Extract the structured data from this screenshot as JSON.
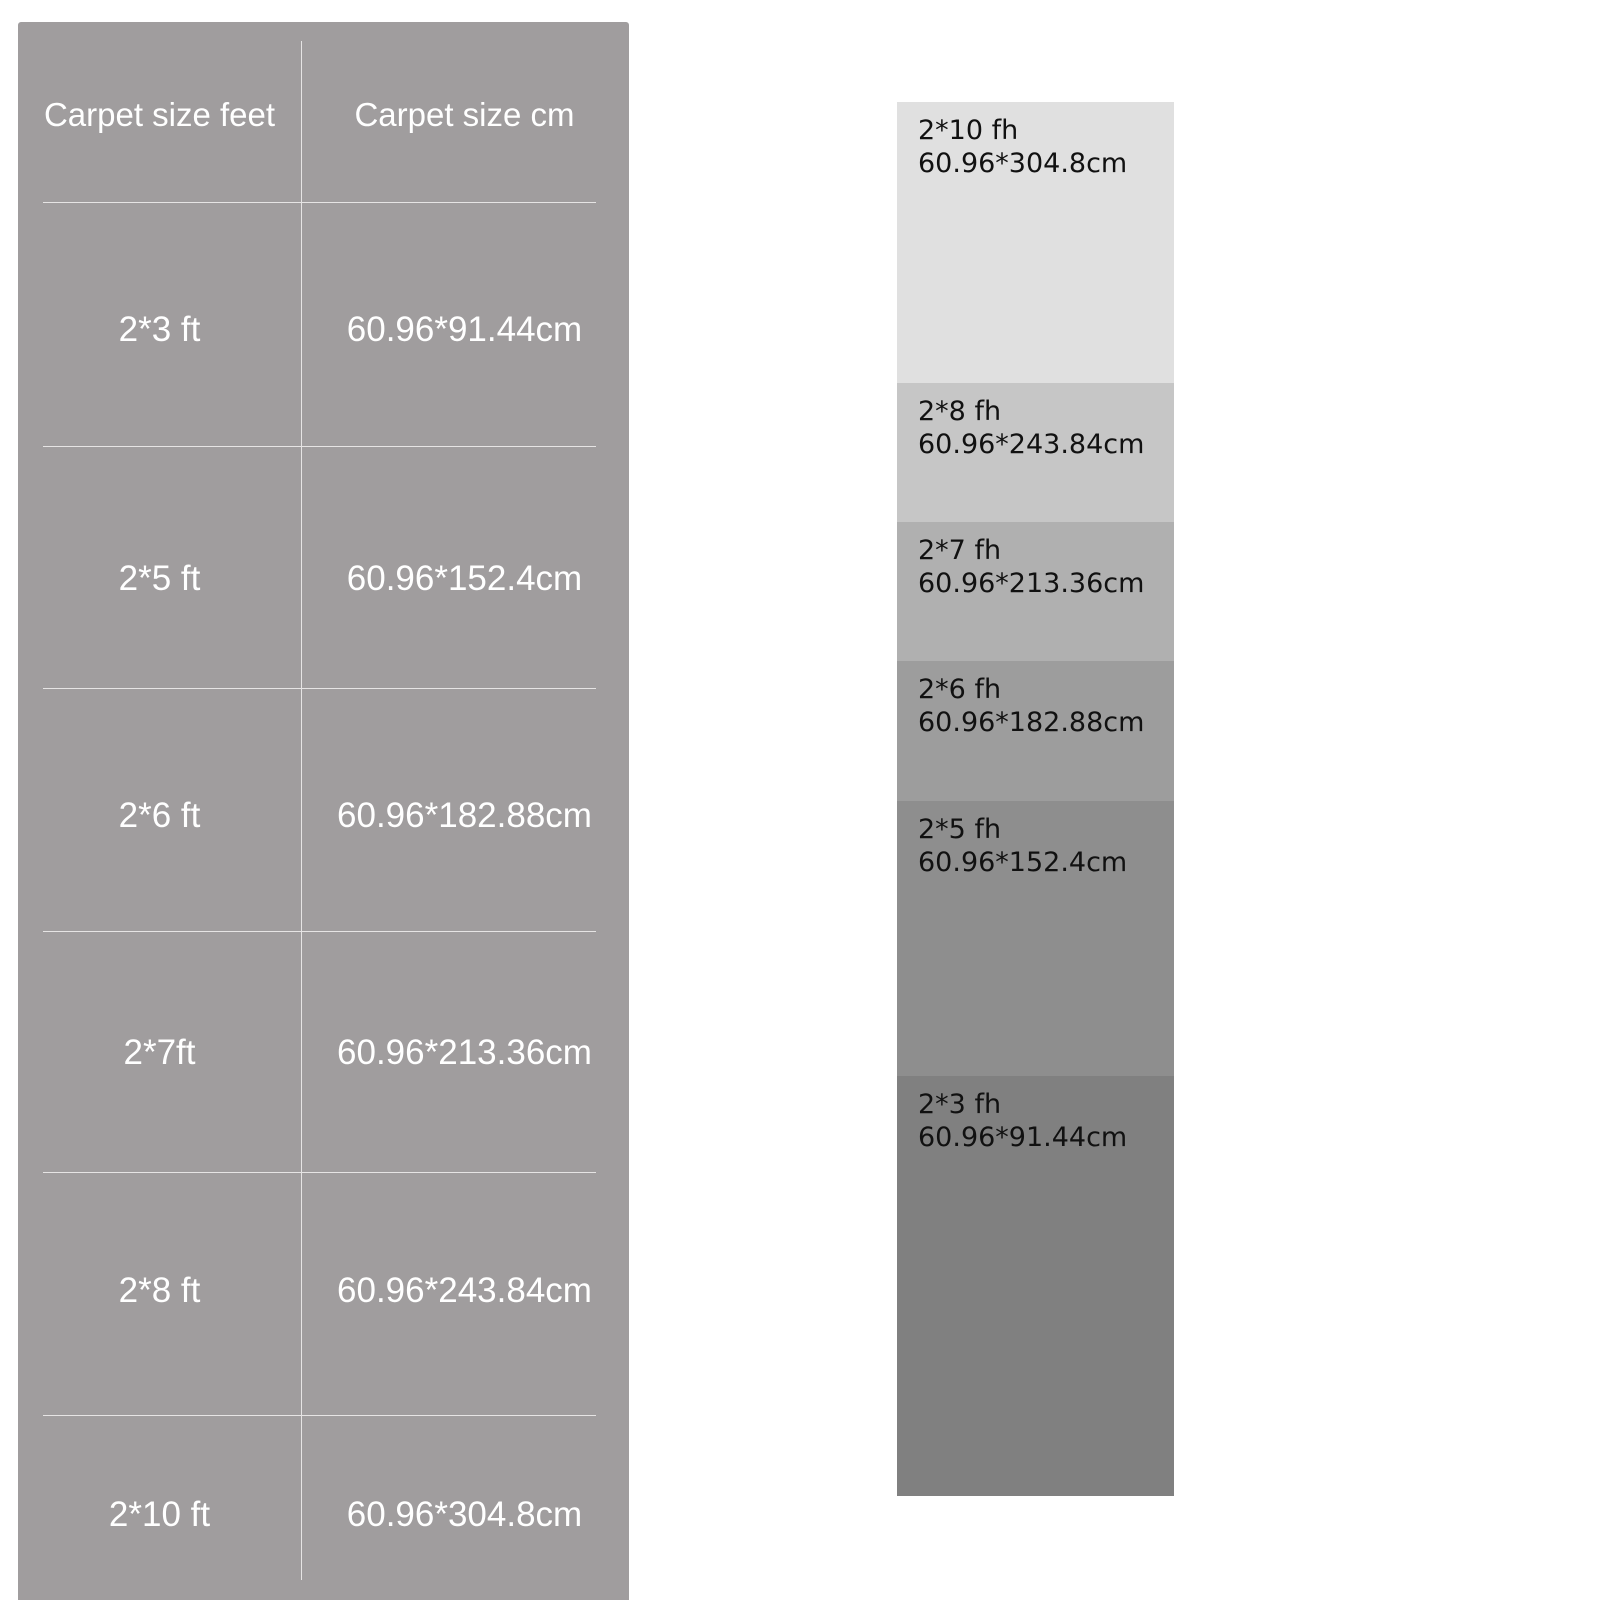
{
  "table": {
    "header": [
      "Carpet size feet",
      "Carpet size cm"
    ],
    "rows": [
      [
        "2*3 ft",
        "60.96*91.44cm"
      ],
      [
        "2*5 ft",
        "60.96*152.4cm"
      ],
      [
        "2*6 ft",
        "60.96*182.88cm"
      ],
      [
        "2*7ft",
        "60.96*213.36cm"
      ],
      [
        "2*8 ft",
        "60.96*243.84cm"
      ],
      [
        "2*10 ft",
        "60.96*304.8cm"
      ]
    ]
  },
  "blocks": [
    {
      "size": "2*10 fh",
      "cm": "60.96*304.8cm"
    },
    {
      "size": "2*8 fh",
      "cm": "60.96*243.84cm"
    },
    {
      "size": "2*7 fh",
      "cm": "60.96*213.36cm"
    },
    {
      "size": "2*6 fh",
      "cm": "60.96*182.88cm"
    },
    {
      "size": "2*5 fh",
      "cm": "60.96*152.4cm"
    },
    {
      "size": "2*3 fh",
      "cm": "60.96*91.44cm"
    }
  ]
}
